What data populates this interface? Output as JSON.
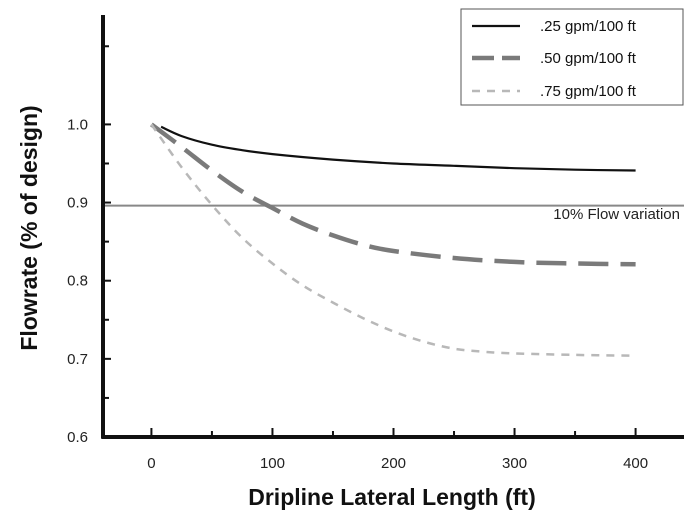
{
  "chart_data": {
    "type": "line",
    "title": "",
    "xlabel": "Dripline Lateral Length (ft)",
    "ylabel": "Flowrate (% of design)",
    "xlim": [
      -40,
      440
    ],
    "ylim": [
      0.6,
      1.14
    ],
    "x_ticks": [
      0,
      100,
      200,
      300,
      400
    ],
    "x_tick_labels": [
      "0",
      "100",
      "200",
      "300",
      "400"
    ],
    "y_ticks": [
      0.6,
      0.7,
      0.8,
      0.9,
      1.0
    ],
    "y_tick_labels": [
      "0.6",
      "0.7",
      "0.8",
      "0.9",
      "1.0"
    ],
    "grid": false,
    "legend_position": "top-right",
    "series": [
      {
        "name": ".25 gpm/100 ft",
        "color": "#111111",
        "style": "solid",
        "x": [
          8,
          25,
          50,
          75,
          100,
          150,
          200,
          250,
          300,
          350,
          400
        ],
        "y": [
          0.997,
          0.985,
          0.974,
          0.967,
          0.962,
          0.955,
          0.95,
          0.947,
          0.944,
          0.942,
          0.941
        ]
      },
      {
        "name": ".50 gpm/100 ft",
        "color": "#7a7a7a",
        "style": "long-dash",
        "x": [
          0,
          25,
          50,
          75,
          100,
          125,
          150,
          175,
          200,
          250,
          300,
          350,
          400
        ],
        "y": [
          1.0,
          0.971,
          0.941,
          0.914,
          0.893,
          0.873,
          0.858,
          0.846,
          0.838,
          0.829,
          0.824,
          0.822,
          0.821
        ]
      },
      {
        "name": ".75 gpm/100 ft",
        "color": "#b8b8b8",
        "style": "short-dash",
        "x": [
          0,
          25,
          50,
          75,
          100,
          125,
          150,
          175,
          200,
          225,
          250,
          275,
          300,
          350,
          400
        ],
        "y": [
          1.0,
          0.945,
          0.897,
          0.855,
          0.822,
          0.794,
          0.772,
          0.752,
          0.735,
          0.722,
          0.713,
          0.709,
          0.707,
          0.705,
          0.704
        ]
      }
    ],
    "reference_line": {
      "y": 0.896,
      "label": "10% Flow variation",
      "color": "#888888"
    }
  }
}
